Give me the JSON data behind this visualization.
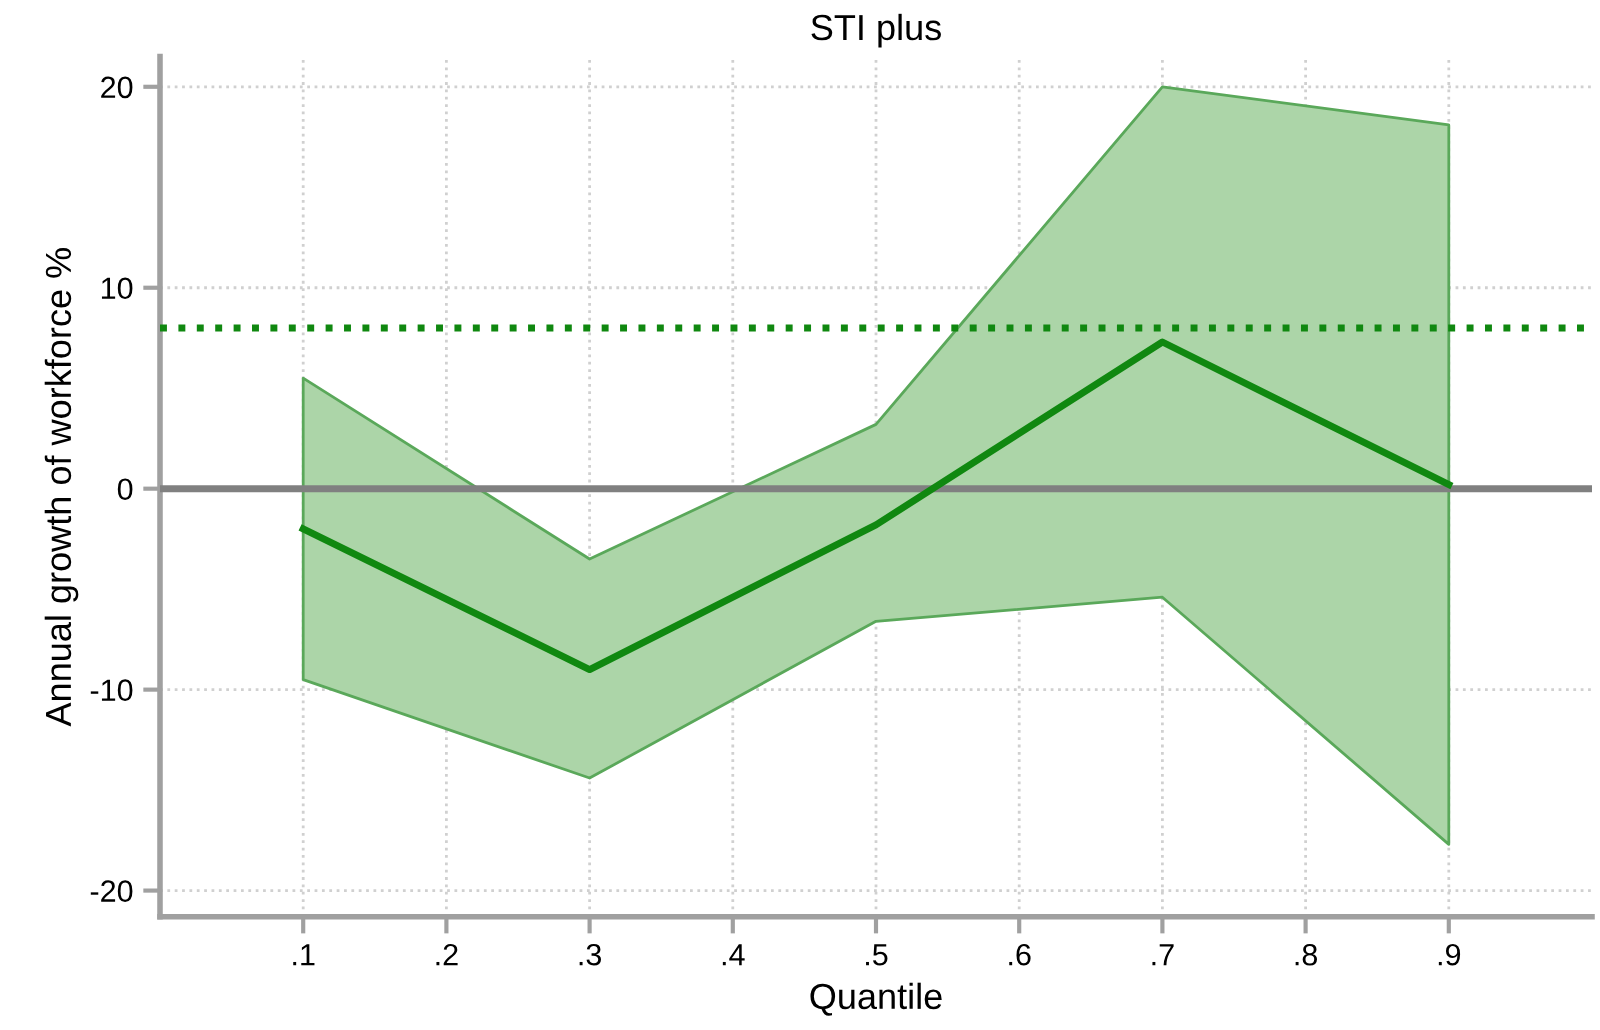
{
  "chart_data": {
    "type": "line",
    "title": "STI plus",
    "xlabel": "Quantile",
    "ylabel": "Annual growth of workforce %",
    "x": [
      0.1,
      0.3,
      0.5,
      0.7,
      0.9
    ],
    "series": [
      {
        "color": "#108810",
        "values": [
          -2.0,
          -9.0,
          -1.8,
          7.3,
          0.2
        ],
        "lower": [
          -9.5,
          -14.4,
          -6.6,
          -5.4,
          -17.7
        ],
        "upper": [
          5.5,
          -3.5,
          3.2,
          20,
          18.1
        ]
      }
    ],
    "xlim": [
      0,
      1
    ],
    "ylim": [
      -21.3,
      21.5
    ],
    "xticks": [
      {
        "value": 0.1,
        "label": ".1"
      },
      {
        "value": 0.2,
        "label": ".2"
      },
      {
        "value": 0.3,
        "label": ".3"
      },
      {
        "value": 0.4,
        "label": ".4"
      },
      {
        "value": 0.5,
        "label": ".5"
      },
      {
        "value": 0.6,
        "label": ".6"
      },
      {
        "value": 0.7,
        "label": ".7"
      },
      {
        "value": 0.8,
        "label": ".8"
      },
      {
        "value": 0.9,
        "label": ".9"
      }
    ],
    "yticks": [
      -20,
      -10,
      0,
      10,
      20
    ],
    "ref_lines": [
      {
        "axis": "y",
        "value": 0,
        "color": "#808080",
        "line_style": "solid"
      },
      {
        "axis": "y",
        "value": 8,
        "color": "#108810",
        "line_style": "dotted"
      }
    ],
    "grid": true,
    "legend": false,
    "marker": "none",
    "line_style": "solid"
  }
}
